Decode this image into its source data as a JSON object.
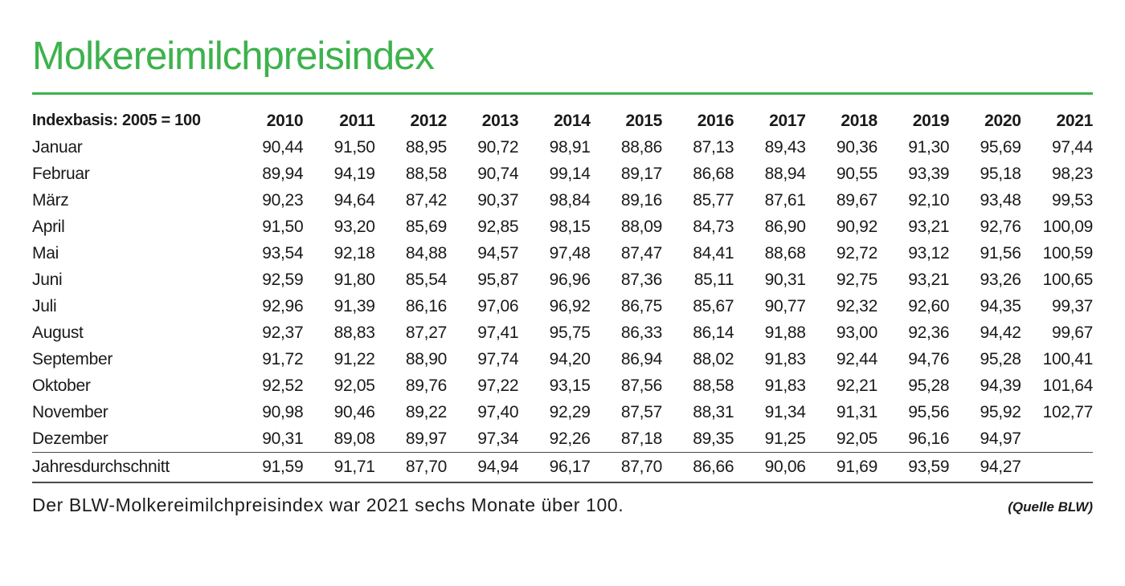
{
  "page": {
    "title": "Molkereimilchpreisindex",
    "accent_color": "#3db24c",
    "footer_note": "Der BLW-Molkereimilchpreisindex war 2021 sechs Monate über 100.",
    "source_label": "(Quelle BLW)"
  },
  "table": {
    "header": [
      "Indexbasis: 2005 = 100",
      "2010",
      "2011",
      "2012",
      "2013",
      "2014",
      "2015",
      "2016",
      "2017",
      "2018",
      "2019",
      "2020",
      "2021"
    ],
    "rows": [
      {
        "label": "Januar",
        "values": [
          "90,44",
          "91,50",
          "88,95",
          "90,72",
          "98,91",
          "88,86",
          "87,13",
          "89,43",
          "90,36",
          "91,30",
          "95,69",
          "97,44"
        ],
        "summary": false
      },
      {
        "label": "Februar",
        "values": [
          "89,94",
          "94,19",
          "88,58",
          "90,74",
          "99,14",
          "89,17",
          "86,68",
          "88,94",
          "90,55",
          "93,39",
          "95,18",
          "98,23"
        ],
        "summary": false
      },
      {
        "label": "März",
        "values": [
          "90,23",
          "94,64",
          "87,42",
          "90,37",
          "98,84",
          "89,16",
          "85,77",
          "87,61",
          "89,67",
          "92,10",
          "93,48",
          "99,53"
        ],
        "summary": false
      },
      {
        "label": "April",
        "values": [
          "91,50",
          "93,20",
          "85,69",
          "92,85",
          "98,15",
          "88,09",
          "84,73",
          "86,90",
          "90,92",
          "93,21",
          "92,76",
          "100,09"
        ],
        "summary": false
      },
      {
        "label": "Mai",
        "values": [
          "93,54",
          "92,18",
          "84,88",
          "94,57",
          "97,48",
          "87,47",
          "84,41",
          "88,68",
          "92,72",
          "93,12",
          "91,56",
          "100,59"
        ],
        "summary": false
      },
      {
        "label": "Juni",
        "values": [
          "92,59",
          "91,80",
          "85,54",
          "95,87",
          "96,96",
          "87,36",
          "85,11",
          "90,31",
          "92,75",
          "93,21",
          "93,26",
          "100,65"
        ],
        "summary": false
      },
      {
        "label": "Juli",
        "values": [
          "92,96",
          "91,39",
          "86,16",
          "97,06",
          "96,92",
          "86,75",
          "85,67",
          "90,77",
          "92,32",
          "92,60",
          "94,35",
          "99,37"
        ],
        "summary": false
      },
      {
        "label": "August",
        "values": [
          "92,37",
          "88,83",
          "87,27",
          "97,41",
          "95,75",
          "86,33",
          "86,14",
          "91,88",
          "93,00",
          "92,36",
          "94,42",
          "99,67"
        ],
        "summary": false
      },
      {
        "label": "September",
        "values": [
          "91,72",
          "91,22",
          "88,90",
          "97,74",
          "94,20",
          "86,94",
          "88,02",
          "91,83",
          "92,44",
          "94,76",
          "95,28",
          "100,41"
        ],
        "summary": false
      },
      {
        "label": "Oktober",
        "values": [
          "92,52",
          "92,05",
          "89,76",
          "97,22",
          "93,15",
          "87,56",
          "88,58",
          "91,83",
          "92,21",
          "95,28",
          "94,39",
          "101,64"
        ],
        "summary": false
      },
      {
        "label": "November",
        "values": [
          "90,98",
          "90,46",
          "89,22",
          "97,40",
          "92,29",
          "87,57",
          "88,31",
          "91,34",
          "91,31",
          "95,56",
          "95,92",
          "102,77"
        ],
        "summary": false
      },
      {
        "label": "Dezember",
        "values": [
          "90,31",
          "89,08",
          "89,97",
          "97,34",
          "92,26",
          "87,18",
          "89,35",
          "91,25",
          "92,05",
          "96,16",
          "94,97",
          ""
        ],
        "summary": false
      },
      {
        "label": "Jahresdurchschnitt",
        "values": [
          "91,59",
          "91,71",
          "87,70",
          "94,94",
          "96,17",
          "87,70",
          "86,66",
          "90,06",
          "91,69",
          "93,59",
          "94,27",
          ""
        ],
        "summary": true
      }
    ]
  }
}
